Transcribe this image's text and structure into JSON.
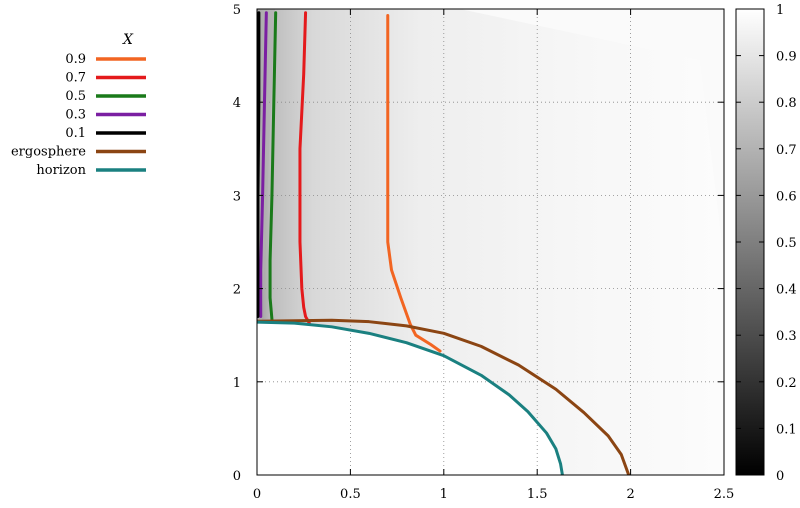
{
  "chart_data": {
    "type": "line",
    "xlim": [
      0,
      2.5
    ],
    "ylim": [
      0,
      5
    ],
    "x_ticks": [
      "0",
      "0.5",
      "1",
      "1.5",
      "2",
      "2.5"
    ],
    "y_ticks": [
      "0",
      "1",
      "2",
      "3",
      "4",
      "5"
    ],
    "grid": true,
    "background": "grayscale heatmap of X (mostly near 1, darker near x = 0 above the horizon)",
    "colorbar": {
      "range": [
        0,
        1
      ],
      "ticks": [
        "0",
        "0.1",
        "0.2",
        "0.3",
        "0.4",
        "0.5",
        "0.6",
        "0.7",
        "0.8",
        "0.9",
        "1"
      ],
      "colors": [
        "#000000",
        "#ffffff"
      ]
    },
    "legend": {
      "title": "X",
      "placement": "left of plot, top"
    },
    "series": [
      {
        "name": "0.9",
        "color": "#f26522",
        "points": [
          [
            0.7,
            4.93
          ],
          [
            0.7,
            3.5
          ],
          [
            0.7,
            2.5
          ],
          [
            0.72,
            2.2
          ],
          [
            0.77,
            1.9
          ],
          [
            0.82,
            1.62
          ],
          [
            0.85,
            1.5
          ],
          [
            0.93,
            1.4
          ],
          [
            0.98,
            1.33
          ]
        ]
      },
      {
        "name": "0.7",
        "color": "#e41a1c",
        "points": [
          [
            0.26,
            4.96
          ],
          [
            0.25,
            4.3
          ],
          [
            0.23,
            3.5
          ],
          [
            0.23,
            2.5
          ],
          [
            0.24,
            2.0
          ],
          [
            0.25,
            1.8
          ],
          [
            0.26,
            1.7
          ],
          [
            0.28,
            1.63
          ]
        ]
      },
      {
        "name": "0.5",
        "color": "#1a7a1a",
        "points": [
          [
            0.1,
            4.96
          ],
          [
            0.09,
            4.0
          ],
          [
            0.08,
            3.0
          ],
          [
            0.07,
            2.3
          ],
          [
            0.07,
            1.9
          ],
          [
            0.08,
            1.67
          ]
        ]
      },
      {
        "name": "0.3",
        "color": "#7b1fa2",
        "points": [
          [
            0.05,
            4.96
          ],
          [
            0.04,
            4.0
          ],
          [
            0.03,
            3.0
          ],
          [
            0.02,
            2.2
          ],
          [
            0.02,
            1.7
          ]
        ]
      },
      {
        "name": "0.1",
        "color": "#000000",
        "points": [
          [
            0.01,
            4.96
          ],
          [
            0.01,
            4.0
          ],
          [
            0.005,
            3.0
          ],
          [
            0.005,
            2.0
          ],
          [
            0.005,
            1.7
          ]
        ]
      },
      {
        "name": "ergosphere",
        "color": "#8b4513",
        "points": [
          [
            0.0,
            1.65
          ],
          [
            0.2,
            1.655
          ],
          [
            0.4,
            1.66
          ],
          [
            0.6,
            1.645
          ],
          [
            0.8,
            1.6
          ],
          [
            1.0,
            1.52
          ],
          [
            1.2,
            1.38
          ],
          [
            1.4,
            1.18
          ],
          [
            1.6,
            0.92
          ],
          [
            1.75,
            0.67
          ],
          [
            1.88,
            0.42
          ],
          [
            1.95,
            0.22
          ],
          [
            1.99,
            0.0
          ]
        ]
      },
      {
        "name": "horizon",
        "color": "#1a8080",
        "points": [
          [
            0.0,
            1.64
          ],
          [
            0.2,
            1.63
          ],
          [
            0.4,
            1.59
          ],
          [
            0.6,
            1.52
          ],
          [
            0.8,
            1.42
          ],
          [
            1.0,
            1.28
          ],
          [
            1.2,
            1.07
          ],
          [
            1.35,
            0.86
          ],
          [
            1.45,
            0.68
          ],
          [
            1.55,
            0.45
          ],
          [
            1.6,
            0.28
          ],
          [
            1.625,
            0.12
          ],
          [
            1.635,
            0.0
          ]
        ]
      }
    ]
  }
}
